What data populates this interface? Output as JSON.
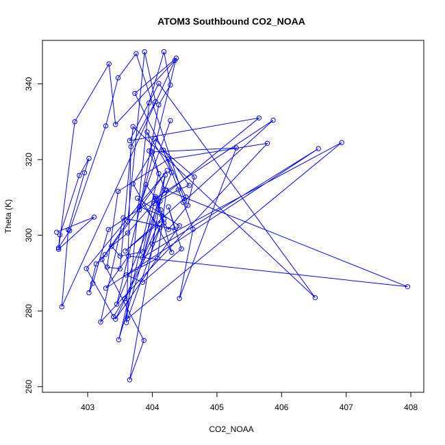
{
  "chart_data": {
    "type": "line",
    "title": "ATOM3 Southbound CO2_NOAA",
    "xlabel": "CO2_NOAA",
    "ylabel": "Theta (K)",
    "xlim": [
      402.3,
      408.2
    ],
    "ylim": [
      258.5,
      351.5
    ],
    "xticks": [
      403,
      404,
      405,
      406,
      407,
      408
    ],
    "yticks": [
      260,
      280,
      300,
      320,
      340
    ],
    "color": "#0000ff",
    "markers": "open-circle",
    "x": [
      402.52,
      403.1,
      402.55,
      402.8,
      403.33,
      403.43,
      404.35,
      402.6,
      402.7,
      402.95,
      403.02,
      402.87,
      402.57,
      402.55,
      402.72,
      403.28,
      403.47,
      403.75,
      404.5,
      405.87,
      403.32,
      403.08,
      403.02,
      403.13,
      403.27,
      403.62,
      403.88,
      404.05,
      403.67,
      403.6,
      403.95,
      404.18,
      404.28,
      404.1,
      403.8,
      403.9,
      404.05,
      404.13,
      404.18,
      404.25,
      404.55,
      404.65,
      404.17,
      404.48,
      404.63,
      404.42,
      405.3,
      404.0,
      403.7,
      404.3,
      404.05,
      403.85,
      403.5,
      403.37,
      403.62,
      404.2,
      403.95,
      404.05,
      404.57,
      404.4,
      404.03,
      405.65,
      403.65,
      404.1,
      406.52,
      403.7,
      403.5,
      403.3,
      403.47,
      404.25,
      405.78,
      403.2,
      403.55,
      404.35,
      404.25,
      404.45,
      403.85,
      403.6,
      404.08,
      404.22,
      407.95,
      403.63,
      403.28,
      406.57,
      403.85,
      404.2,
      404.0,
      406.93,
      403.62,
      404.12,
      403.77,
      404.42,
      403.43,
      404.18,
      403.58,
      404.52,
      403.73,
      404.37,
      403.45,
      404.3,
      403.92,
      404.1,
      403.48,
      404.12,
      403.65,
      403.87,
      403.22,
      404.23,
      402.98,
      403.4,
      403.57,
      404.15,
      403.8,
      404.28
    ],
    "y": [
      300.8,
      304.8,
      296.3,
      330.0,
      345.3,
      329.3,
      346.2,
      281.1,
      301.4,
      316.5,
      320.3,
      315.8,
      300.1,
      296.7,
      301.2,
      328.9,
      341.6,
      348.0,
      309.1,
      330.4,
      301.5,
      287.3,
      284.8,
      292.4,
      294.9,
      303.6,
      348.5,
      335.3,
      323.4,
      276.9,
      335.0,
      348.5,
      339.7,
      334.5,
      306.7,
      313.4,
      309.8,
      306.7,
      303.2,
      301.5,
      307.9,
      315.4,
      322.5,
      308.7,
      301.6,
      283.3,
      323.1,
      322.0,
      313.6,
      295.5,
      310.2,
      295.6,
      294.5,
      297.1,
      300.6,
      312.0,
      322.3,
      325.5,
      313.2,
      312.0,
      308.4,
      331.0,
      325.0,
      340.1,
      283.5,
      328.7,
      291.1,
      291.6,
      311.6,
      320.1,
      324.3,
      277.1,
      304.6,
      301.5,
      307.5,
      296.4,
      287.6,
      289.5,
      293.9,
      311.9,
      286.4,
      294.5,
      286.0,
      322.9,
      294.1,
      315.9,
      297.7,
      324.5,
      278.0,
      302.0,
      309.8,
      302.5,
      277.8,
      304.3,
      295.8,
      310.1,
      337.5,
      346.8,
      281.8,
      316.6,
      327.3,
      316.3,
      272.4,
      309.0,
      261.8,
      272.2,
      293.6,
      317.1,
      291.2,
      278.5,
      283.2,
      305.2,
      307.5,
      330.3
    ]
  }
}
